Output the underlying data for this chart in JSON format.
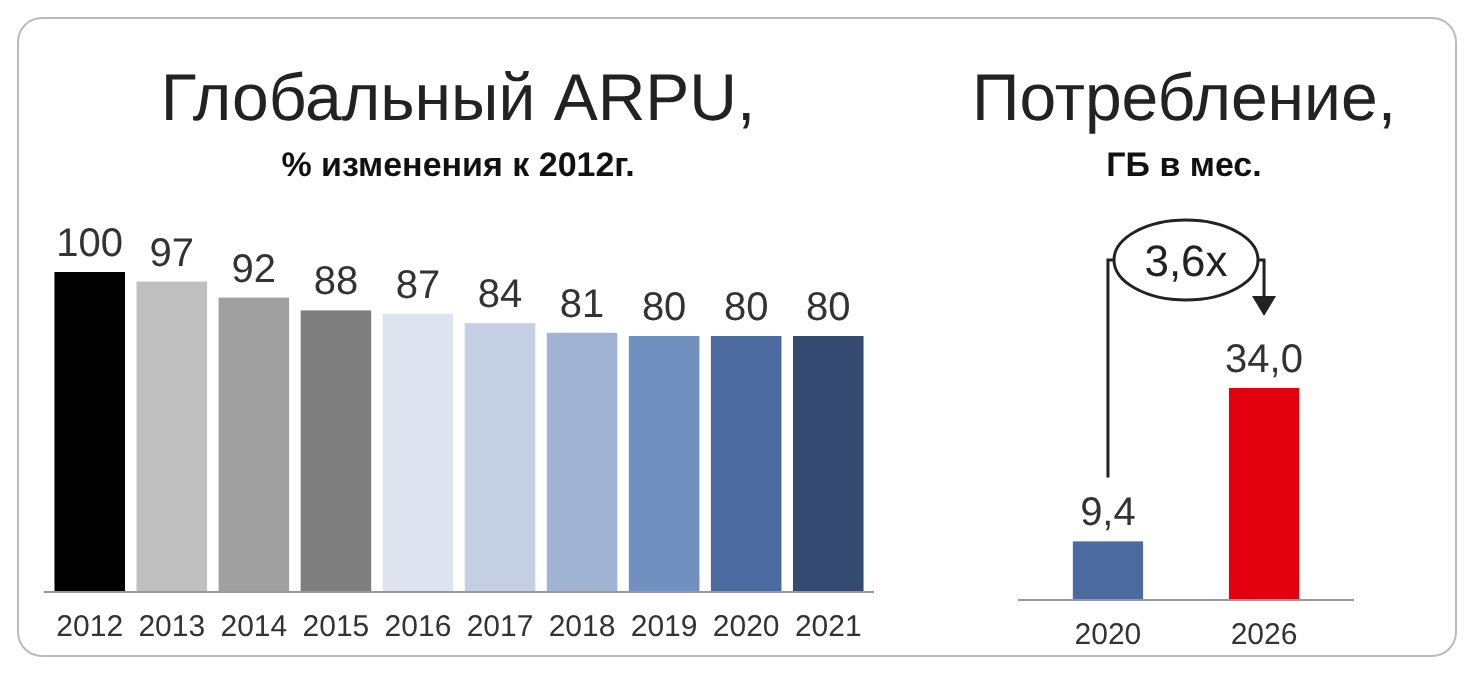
{
  "chart_data": [
    {
      "type": "bar",
      "title": "Глобальный ARPU,",
      "subtitle": "% изменения к 2012г.",
      "categories": [
        "2012",
        "2013",
        "2014",
        "2015",
        "2016",
        "2017",
        "2018",
        "2019",
        "2020",
        "2021"
      ],
      "values": [
        100,
        97,
        92,
        88,
        87,
        84,
        81,
        80,
        80,
        80
      ],
      "colors": [
        "#000000",
        "#bfbfbf",
        "#a0a0a0",
        "#7f7f7f",
        "#dde4f0",
        "#c4cfe3",
        "#a0b3d2",
        "#7090c0",
        "#4b6aa0",
        "#344a70"
      ],
      "data_labels": true
    },
    {
      "type": "bar",
      "title": "Потребление,",
      "subtitle": "ГБ в мес.",
      "categories": [
        "2020",
        "2026"
      ],
      "values": [
        9.4,
        34.0
      ],
      "value_labels": [
        "9,4",
        "34,0"
      ],
      "colors": [
        "#4b6aa0",
        "#e3000f"
      ],
      "annotations": [
        "3,6x"
      ]
    }
  ]
}
